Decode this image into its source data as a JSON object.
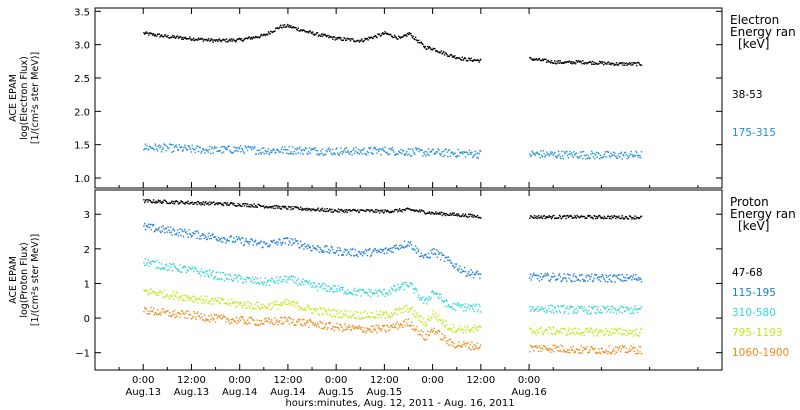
{
  "chart_data": [
    {
      "type": "scatter",
      "panel": "electron",
      "ylabel_lines": [
        "ACE EPAM",
        "log(Electron Flux)",
        "[1/(cm²s ster MeV)]"
      ],
      "ylim": [
        0.85,
        3.55
      ],
      "yticks": [
        1.0,
        1.5,
        2.0,
        2.5,
        3.0,
        3.5
      ],
      "ytick_labels": [
        "1.0",
        "1.5",
        "2.0",
        "2.5",
        "3.0",
        "3.5"
      ],
      "legend_title": [
        "Electron",
        "Energy ran",
        "[keV]"
      ],
      "series": [
        {
          "name": "38-53",
          "color": "#000000",
          "t": [
            0,
            6,
            12,
            18,
            24,
            30,
            34,
            36,
            38,
            42,
            48,
            54,
            58,
            60,
            64,
            66,
            70,
            72,
            76,
            80,
            84,
            90,
            96,
            102,
            106,
            108,
            112,
            118,
            124,
            130,
            132
          ],
          "values": [
            3.18,
            3.13,
            3.1,
            3.07,
            3.08,
            3.15,
            3.28,
            3.29,
            3.25,
            3.18,
            3.1,
            3.07,
            3.14,
            3.18,
            3.1,
            3.18,
            2.97,
            2.95,
            2.85,
            2.79,
            2.77,
            null,
            2.8,
            2.75,
            2.74,
            2.75,
            2.74,
            2.72,
            2.72,
            null,
            2.72
          ]
        },
        {
          "name": "175-315",
          "color": "#1f8fdc",
          "t": [
            0,
            6,
            12,
            18,
            24,
            30,
            36,
            42,
            48,
            54,
            60,
            66,
            72,
            78,
            84,
            90,
            96,
            102,
            108,
            114,
            120,
            124,
            130,
            132
          ],
          "values": [
            1.47,
            1.46,
            1.44,
            1.43,
            1.44,
            1.42,
            1.43,
            1.42,
            1.41,
            1.41,
            1.42,
            1.4,
            1.39,
            1.38,
            1.37,
            null,
            1.37,
            1.36,
            1.36,
            1.35,
            1.35,
            1.36,
            null,
            1.33
          ]
        }
      ]
    },
    {
      "type": "scatter",
      "panel": "proton",
      "ylabel_lines": [
        "ACE EPAM",
        "log(Proton Flux)",
        "[1/(cm²s ster MeV)]"
      ],
      "ylim": [
        -1.5,
        3.7
      ],
      "yticks": [
        -1,
        0,
        1,
        2,
        3
      ],
      "ytick_labels": [
        "−1",
        "0",
        "1",
        "2",
        "3"
      ],
      "legend_title": [
        "Proton",
        "Energy ran",
        "[keV]"
      ],
      "series": [
        {
          "name": "47-68",
          "color": "#000000",
          "t": [
            0,
            12,
            24,
            30,
            36,
            48,
            54,
            60,
            66,
            72,
            78,
            84,
            90,
            96,
            108,
            120,
            124,
            130,
            132
          ],
          "values": [
            3.4,
            3.35,
            3.3,
            3.25,
            3.2,
            3.12,
            3.12,
            3.1,
            3.15,
            3.05,
            3.0,
            2.95,
            null,
            2.94,
            2.94,
            2.93,
            2.93,
            null,
            2.92
          ]
        },
        {
          "name": "115-195",
          "color": "#1f7fd8",
          "t": [
            0,
            6,
            12,
            18,
            24,
            30,
            36,
            42,
            48,
            54,
            60,
            66,
            70,
            72,
            78,
            80,
            84,
            90,
            96,
            102,
            108,
            114,
            120,
            124,
            130,
            132
          ],
          "values": [
            2.65,
            2.55,
            2.45,
            2.35,
            2.25,
            2.15,
            2.25,
            2.05,
            1.95,
            1.9,
            1.95,
            2.2,
            1.75,
            1.95,
            1.5,
            1.35,
            1.25,
            null,
            1.2,
            1.2,
            1.18,
            1.17,
            1.17,
            1.18,
            null,
            1.1
          ]
        },
        {
          "name": "310-580",
          "color": "#35d6d6",
          "t": [
            0,
            6,
            12,
            18,
            24,
            30,
            36,
            42,
            48,
            54,
            60,
            66,
            70,
            72,
            76,
            78,
            84,
            90,
            96,
            102,
            108,
            114,
            120,
            124,
            130,
            132
          ],
          "values": [
            1.65,
            1.5,
            1.4,
            1.25,
            1.15,
            1.05,
            1.15,
            0.95,
            0.85,
            0.75,
            0.75,
            1.0,
            0.45,
            0.8,
            0.35,
            0.35,
            0.3,
            null,
            0.3,
            0.28,
            0.25,
            0.25,
            0.25,
            0.25,
            null,
            0.2
          ]
        },
        {
          "name": "795-1193",
          "color": "#c8e61e",
          "t": [
            0,
            6,
            12,
            18,
            24,
            30,
            36,
            42,
            48,
            54,
            60,
            66,
            70,
            72,
            76,
            78,
            84,
            90,
            96,
            102,
            108,
            114,
            120,
            124,
            130,
            132
          ],
          "values": [
            0.8,
            0.7,
            0.6,
            0.5,
            0.42,
            0.35,
            0.45,
            0.25,
            0.15,
            0.1,
            0.1,
            0.3,
            -0.15,
            0.15,
            -0.25,
            -0.3,
            -0.3,
            null,
            -0.35,
            -0.35,
            -0.38,
            -0.38,
            -0.38,
            -0.4,
            null,
            -0.4
          ]
        },
        {
          "name": "1060-1900",
          "color": "#ee8a1e",
          "t": [
            0,
            6,
            12,
            18,
            24,
            30,
            36,
            42,
            48,
            54,
            60,
            66,
            70,
            72,
            76,
            78,
            84,
            90,
            96,
            102,
            108,
            114,
            120,
            124,
            130,
            132
          ],
          "values": [
            0.25,
            0.15,
            0.1,
            0.0,
            -0.05,
            -0.1,
            -0.05,
            -0.15,
            -0.25,
            -0.3,
            -0.3,
            -0.1,
            -0.55,
            -0.3,
            -0.7,
            -0.75,
            -0.8,
            null,
            -0.85,
            -0.85,
            -0.9,
            -0.9,
            -0.9,
            -0.9,
            null,
            -0.9
          ]
        }
      ]
    }
  ],
  "x_axis": {
    "hours_per_day": 24,
    "tick_hours": [
      0,
      12,
      24,
      36,
      48,
      60,
      72,
      84,
      96
    ],
    "tick_time_labels": [
      "0:00",
      "12:00",
      "0:00",
      "12:00",
      "0:00",
      "12:00",
      "0:00",
      "12:00",
      "0:00"
    ],
    "tick_date_labels": [
      "Aug.13",
      "Aug.13",
      "Aug.14",
      "Aug.14",
      "Aug.15",
      "Aug.15",
      "Aug.16"
    ],
    "xlabel": "hours:minutes, Aug. 12, 2011 - Aug. 16, 2011"
  }
}
